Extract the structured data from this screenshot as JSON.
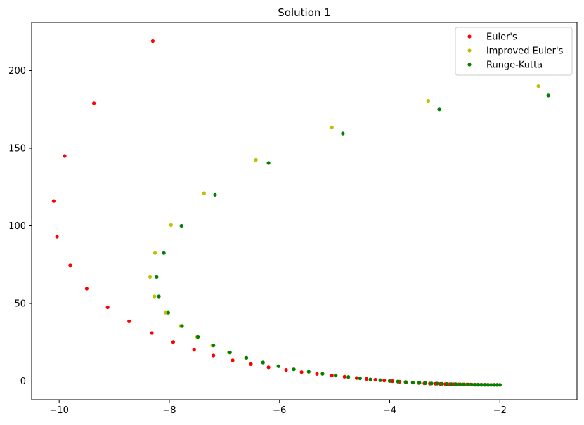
{
  "chart_data": {
    "type": "scatter",
    "title": "Solution 1",
    "xlabel": "",
    "ylabel": "",
    "xlim": [
      -10.5,
      -0.6
    ],
    "ylim": [
      -12,
      231
    ],
    "xticks": [
      -10,
      -8,
      -6,
      -4,
      -2
    ],
    "yticks": [
      0,
      50,
      100,
      150,
      200
    ],
    "xtick_labels": [
      "−10",
      "−8",
      "−6",
      "−4",
      "−2"
    ],
    "ytick_labels": [
      "0",
      "50",
      "100",
      "150",
      "200"
    ],
    "grid": false,
    "legend": "top-right",
    "series": [
      {
        "name": "Euler's",
        "color": "#ff0000",
        "points": [
          [
            -8.3,
            219
          ],
          [
            -9.37,
            179
          ],
          [
            -9.9,
            145
          ],
          [
            -10.1,
            116
          ],
          [
            -10.04,
            93
          ],
          [
            -9.8,
            74.5
          ],
          [
            -9.5,
            59.5
          ],
          [
            -9.12,
            47.5
          ],
          [
            -8.73,
            38.5
          ],
          [
            -8.32,
            31
          ],
          [
            -7.93,
            25.2
          ],
          [
            -7.55,
            20.3
          ],
          [
            -7.2,
            16.5
          ],
          [
            -6.85,
            13.4
          ],
          [
            -6.52,
            10.9
          ],
          [
            -6.2,
            8.9
          ],
          [
            -5.88,
            7.2
          ],
          [
            -5.6,
            5.8
          ],
          [
            -5.32,
            4.6
          ],
          [
            -5.05,
            3.6
          ],
          [
            -4.82,
            2.8
          ],
          [
            -4.6,
            2.0
          ],
          [
            -4.42,
            1.4
          ],
          [
            -4.26,
            0.9
          ],
          [
            -4.1,
            0.4
          ],
          [
            -3.95,
            0.0
          ],
          [
            -3.82,
            -0.4
          ],
          [
            -3.7,
            -0.7
          ],
          [
            -3.58,
            -1.0
          ],
          [
            -3.47,
            -1.2
          ],
          [
            -3.37,
            -1.4
          ],
          [
            -3.27,
            -1.6
          ],
          [
            -3.17,
            -1.7
          ],
          [
            -3.08,
            -1.8
          ],
          [
            -2.99,
            -1.9
          ],
          [
            -2.91,
            -2.0
          ],
          [
            -2.83,
            -2.05
          ],
          [
            -2.75,
            -2.1
          ],
          [
            -2.67,
            -2.15
          ],
          [
            -2.6,
            -2.2
          ],
          [
            -2.53,
            -2.2
          ],
          [
            -2.46,
            -2.25
          ],
          [
            -2.4,
            -2.3
          ],
          [
            -2.34,
            -2.3
          ],
          [
            -2.28,
            -2.35
          ],
          [
            -2.22,
            -2.35
          ],
          [
            -2.16,
            -2.4
          ],
          [
            -2.11,
            -2.4
          ],
          [
            -2.05,
            -2.4
          ],
          [
            -2.0,
            -2.4
          ]
        ]
      },
      {
        "name": "improved Euler's",
        "color": "#bfbf00",
        "points": [
          [
            -1.3,
            190
          ],
          [
            -3.3,
            180.5
          ],
          [
            -5.05,
            163.5
          ],
          [
            -6.43,
            142.5
          ],
          [
            -7.37,
            121
          ],
          [
            -7.97,
            100.5
          ],
          [
            -8.26,
            82.5
          ],
          [
            -8.35,
            67
          ],
          [
            -8.27,
            54.5
          ],
          [
            -8.07,
            44
          ],
          [
            -7.8,
            35.5
          ],
          [
            -7.5,
            28.5
          ],
          [
            -7.22,
            23
          ],
          [
            -6.92,
            18.5
          ],
          [
            -6.61,
            15
          ],
          [
            -6.3,
            12
          ],
          [
            -6.02,
            9.6
          ],
          [
            -5.74,
            7.6
          ],
          [
            -5.47,
            6
          ],
          [
            -5.22,
            4.7
          ],
          [
            -4.98,
            3.6
          ],
          [
            -4.75,
            2.6
          ],
          [
            -4.54,
            1.8
          ],
          [
            -4.35,
            1.1
          ],
          [
            -4.17,
            0.6
          ],
          [
            -4.0,
            0.1
          ],
          [
            -3.85,
            -0.3
          ],
          [
            -3.71,
            -0.6
          ],
          [
            -3.58,
            -0.9
          ],
          [
            -3.46,
            -1.1
          ],
          [
            -3.35,
            -1.3
          ],
          [
            -3.24,
            -1.5
          ],
          [
            -3.14,
            -1.6
          ],
          [
            -3.05,
            -1.75
          ],
          [
            -2.96,
            -1.85
          ],
          [
            -2.88,
            -1.95
          ],
          [
            -2.8,
            -2.0
          ],
          [
            -2.72,
            -2.1
          ],
          [
            -2.65,
            -2.15
          ],
          [
            -2.58,
            -2.2
          ],
          [
            -2.51,
            -2.25
          ],
          [
            -2.45,
            -2.3
          ],
          [
            -2.39,
            -2.3
          ],
          [
            -2.33,
            -2.35
          ],
          [
            -2.27,
            -2.35
          ],
          [
            -2.21,
            -2.4
          ],
          [
            -2.16,
            -2.4
          ],
          [
            -2.1,
            -2.4
          ],
          [
            -2.05,
            -2.4
          ],
          [
            -2.0,
            -2.4
          ]
        ]
      },
      {
        "name": "Runge-Kutta",
        "color": "#008000",
        "points": [
          [
            -1.12,
            184
          ],
          [
            -3.1,
            175
          ],
          [
            -4.85,
            159.5
          ],
          [
            -6.2,
            140.5
          ],
          [
            -7.17,
            120
          ],
          [
            -7.78,
            100
          ],
          [
            -8.1,
            82.5
          ],
          [
            -8.23,
            67
          ],
          [
            -8.19,
            54.5
          ],
          [
            -8.02,
            44
          ],
          [
            -7.77,
            35.5
          ],
          [
            -7.48,
            28.5
          ],
          [
            -7.2,
            23
          ],
          [
            -6.9,
            18.5
          ],
          [
            -6.6,
            15
          ],
          [
            -6.3,
            12
          ],
          [
            -6.02,
            9.6
          ],
          [
            -5.74,
            7.6
          ],
          [
            -5.47,
            6
          ],
          [
            -5.22,
            4.7
          ],
          [
            -4.98,
            3.6
          ],
          [
            -4.75,
            2.6
          ],
          [
            -4.54,
            1.8
          ],
          [
            -4.35,
            1.1
          ],
          [
            -4.17,
            0.6
          ],
          [
            -4.0,
            0.1
          ],
          [
            -3.85,
            -0.3
          ],
          [
            -3.71,
            -0.6
          ],
          [
            -3.58,
            -0.9
          ],
          [
            -3.46,
            -1.1
          ],
          [
            -3.35,
            -1.3
          ],
          [
            -3.24,
            -1.5
          ],
          [
            -3.14,
            -1.6
          ],
          [
            -3.05,
            -1.75
          ],
          [
            -2.96,
            -1.85
          ],
          [
            -2.88,
            -1.95
          ],
          [
            -2.8,
            -2.0
          ],
          [
            -2.72,
            -2.1
          ],
          [
            -2.65,
            -2.15
          ],
          [
            -2.58,
            -2.2
          ],
          [
            -2.51,
            -2.25
          ],
          [
            -2.45,
            -2.3
          ],
          [
            -2.39,
            -2.3
          ],
          [
            -2.33,
            -2.35
          ],
          [
            -2.27,
            -2.35
          ],
          [
            -2.21,
            -2.4
          ],
          [
            -2.16,
            -2.4
          ],
          [
            -2.1,
            -2.4
          ],
          [
            -2.05,
            -2.4
          ],
          [
            -2.0,
            -2.4
          ]
        ]
      }
    ]
  }
}
